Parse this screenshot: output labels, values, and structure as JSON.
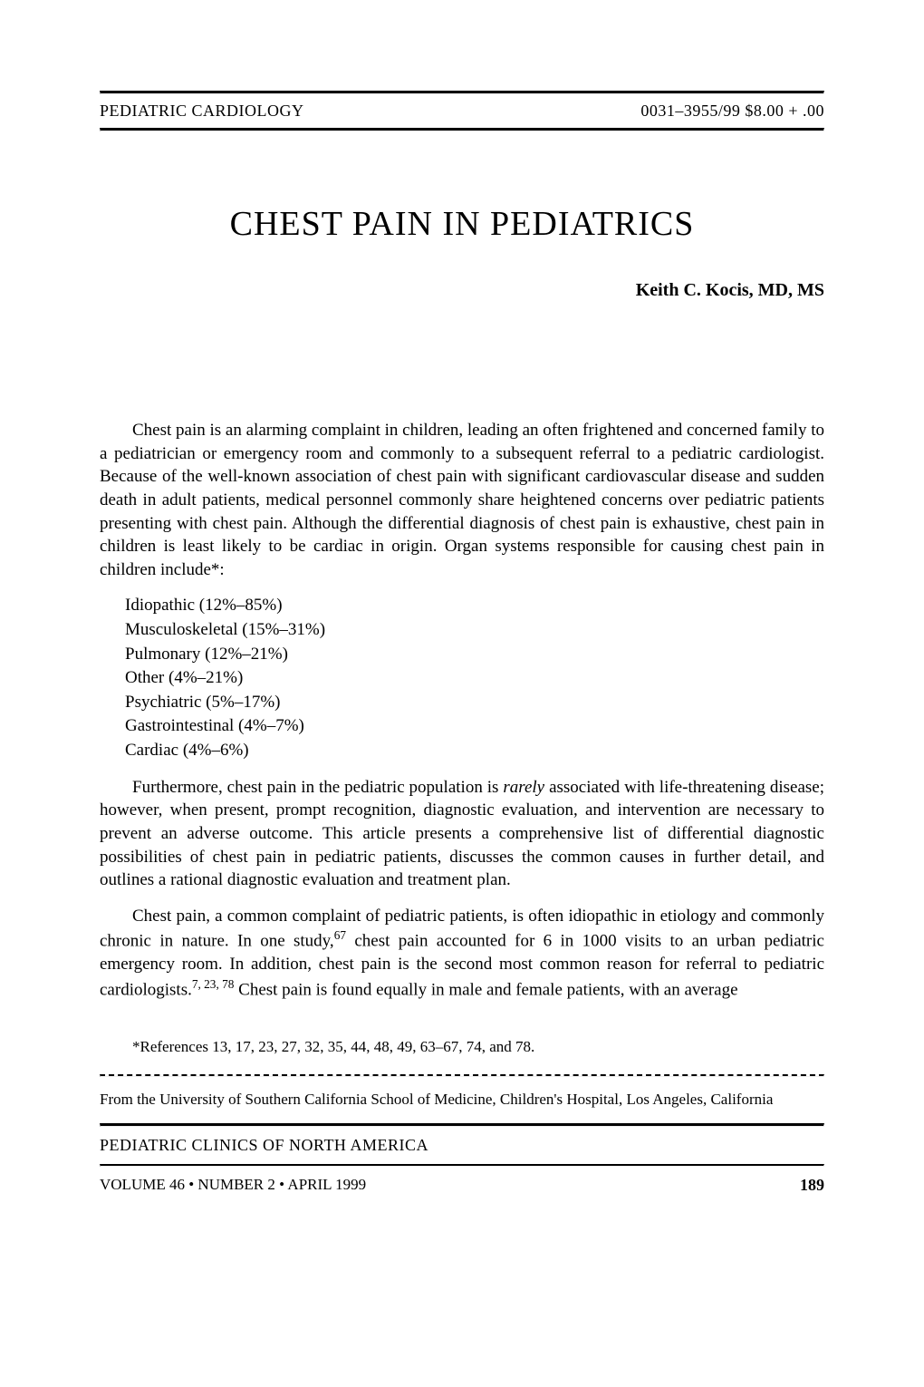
{
  "header": {
    "section": "PEDIATRIC CARDIOLOGY",
    "issn_price": "0031–3955/99 $8.00 + .00"
  },
  "title": "CHEST PAIN IN PEDIATRICS",
  "author": "Keith C. Kocis, MD, MS",
  "paragraphs": {
    "p1": "Chest pain is an alarming complaint in children, leading an often frightened and concerned family to a pediatrician or emergency room and commonly to a subsequent referral to a pediatric cardiologist. Because of the well-known association of chest pain with significant cardiovascular disease and sudden death in adult patients, medical personnel commonly share heightened concerns over pediatric patients presenting with chest pain. Although the differential diagnosis of chest pain is exhaustive, chest pain in children is least likely to be cardiac in origin. Organ systems responsible for causing chest pain in children include*:",
    "p2_pre": "Furthermore, chest pain in the pediatric population is ",
    "p2_italic": "rarely",
    "p2_post": " associated with life-threatening disease; however, when present, prompt recognition, diagnostic evaluation, and intervention are necessary to prevent an adverse outcome. This article presents a comprehensive list of differential diagnostic possibilities of chest pain in pediatric patients, discusses the common causes in further detail, and outlines a rational diagnostic evaluation and treatment plan.",
    "p3_pre": "Chest pain, a common complaint of pediatric patients, is often idiopathic in etiology and commonly chronic in nature. In one study,",
    "p3_sup1": "67",
    "p3_mid": " chest pain accounted for 6 in 1000 visits to an urban pediatric emergency room. In addition, chest pain is the second most common reason for referral to pediatric cardiologists.",
    "p3_sup2": "7, 23, 78",
    "p3_post": " Chest pain is found equally in male and female patients, with an average"
  },
  "list": {
    "items": [
      "Idiopathic (12%–85%)",
      "Musculoskeletal (15%–31%)",
      "Pulmonary (12%–21%)",
      "Other (4%–21%)",
      "Psychiatric (5%–17%)",
      "Gastrointestinal (4%–7%)",
      "Cardiac (4%–6%)"
    ]
  },
  "footnote": "*References 13, 17, 23, 27, 32, 35, 44, 48, 49, 63–67, 74, and 78.",
  "affiliation": "From the University of Southern California School of Medicine, Children's Hospital, Los Angeles, California",
  "journal": "PEDIATRIC CLINICS OF NORTH AMERICA",
  "footer": {
    "volume": "VOLUME 46 • NUMBER 2 • APRIL 1999",
    "page": "189"
  }
}
